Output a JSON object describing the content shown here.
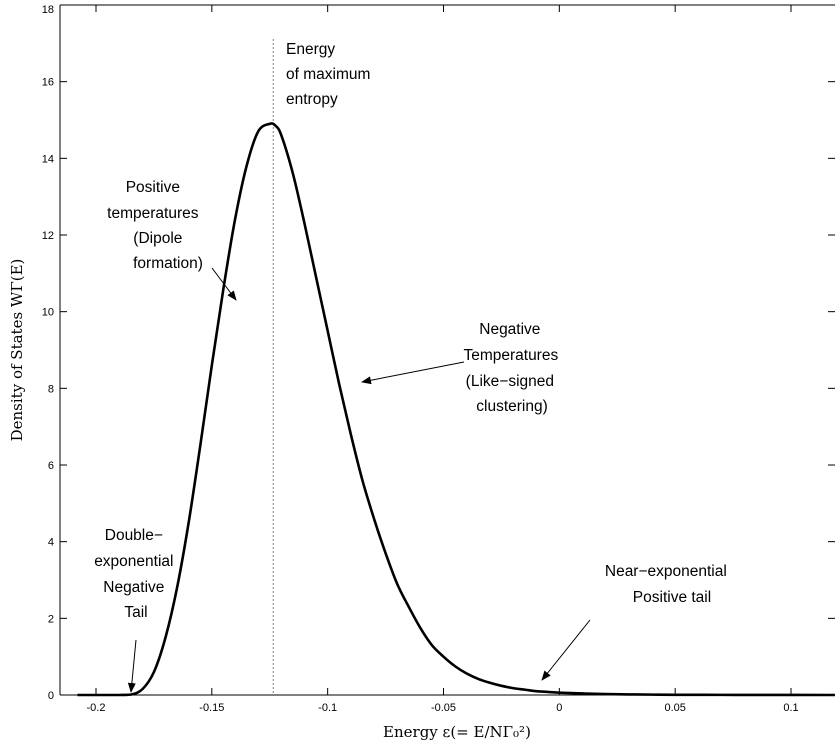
{
  "chart_data": {
    "type": "line",
    "title": "",
    "xlabel": "Energy ε(= E/NΓ₀²)",
    "ylabel": "Density of States WΓ(E)",
    "xlim": [
      -0.21,
      0.12
    ],
    "ylim": [
      0,
      18
    ],
    "xticks": [
      -0.2,
      -0.15,
      -0.1,
      -0.05,
      0,
      0.05,
      0.1
    ],
    "xtick_labels": [
      "-0.2",
      "-0.15",
      "-0.1",
      "-0.05",
      "0",
      "0.05",
      "0.1"
    ],
    "yticks": [
      0,
      2,
      4,
      6,
      8,
      10,
      12,
      14,
      16,
      18
    ],
    "ytick_labels": [
      "0",
      "2",
      "4",
      "6",
      "8",
      "10",
      "12",
      "14",
      "16",
      "18"
    ],
    "grid": false,
    "line_color": "#000000",
    "series": [
      {
        "x": [
          -0.208,
          -0.195,
          -0.19,
          -0.185,
          -0.18,
          -0.175,
          -0.17,
          -0.165,
          -0.16,
          -0.155,
          -0.15,
          -0.145,
          -0.14,
          -0.135,
          -0.13,
          -0.125,
          -0.1225,
          -0.12,
          -0.115,
          -0.11,
          -0.105,
          -0.1,
          -0.095,
          -0.09,
          -0.085,
          -0.08,
          -0.075,
          -0.07,
          -0.065,
          -0.06,
          -0.055,
          -0.05,
          -0.045,
          -0.04,
          -0.035,
          -0.03,
          -0.025,
          -0.02,
          -0.015,
          -0.01,
          -0.005,
          0.0,
          0.01,
          0.02,
          0.03,
          0.04,
          0.05,
          0.07,
          0.09,
          0.12
        ],
        "y": [
          0,
          0,
          0,
          0.01,
          0.15,
          0.6,
          1.5,
          2.8,
          4.5,
          6.5,
          8.6,
          10.6,
          12.4,
          13.8,
          14.7,
          14.9,
          14.85,
          14.6,
          13.6,
          12.3,
          10.9,
          9.5,
          8.1,
          6.8,
          5.6,
          4.6,
          3.7,
          2.9,
          2.3,
          1.75,
          1.3,
          1.0,
          0.75,
          0.56,
          0.42,
          0.32,
          0.24,
          0.18,
          0.14,
          0.1,
          0.08,
          0.06,
          0.04,
          0.025,
          0.015,
          0.01,
          0.006,
          0.003,
          0.001,
          0.0
        ]
      }
    ],
    "vline": {
      "x": -0.1235,
      "y_top": 17.1,
      "style": "dotted"
    },
    "annotations": [
      {
        "lines": [
          "Energy",
          "of maximum",
          "entropy"
        ]
      },
      {
        "lines": [
          "Positive",
          "temperatures",
          "(Dipole",
          "formation)"
        ]
      },
      {
        "lines": [
          "Negative",
          "Temperatures",
          "(Like−signed",
          "clustering)"
        ]
      },
      {
        "lines": [
          "Double−",
          "exponential",
          "Negative",
          "Tail"
        ]
      },
      {
        "lines": [
          "Near−exponential",
          "Positive tail"
        ]
      }
    ]
  }
}
